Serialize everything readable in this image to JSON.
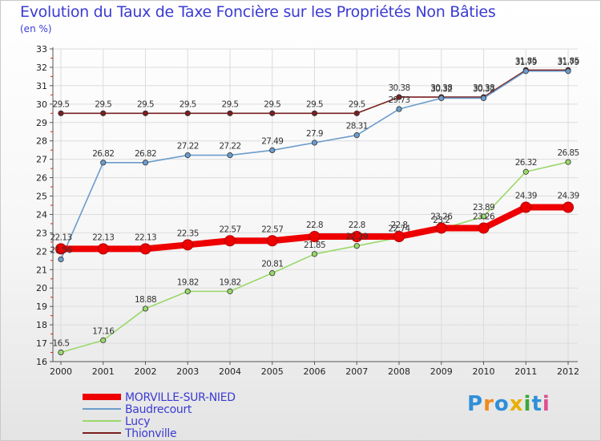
{
  "chart_data": {
    "type": "line",
    "title": "Evolution du Taux de Taxe Foncière sur les Propriétés Non Bâties",
    "ylabel": "(en %)",
    "xlabel": "",
    "x": [
      "2000",
      "2001",
      "2002",
      "2003",
      "2004",
      "2005",
      "2006",
      "2007",
      "2008",
      "2009",
      "2010",
      "2011",
      "2012"
    ],
    "ylim": [
      16,
      33
    ],
    "yticks": [
      16,
      17,
      18,
      19,
      20,
      21,
      22,
      23,
      24,
      25,
      26,
      27,
      28,
      29,
      30,
      31,
      32,
      33
    ],
    "series": [
      {
        "name": "Thionville",
        "color": "#7a2020",
        "values": [
          29.5,
          29.5,
          29.5,
          29.5,
          29.5,
          29.5,
          29.5,
          29.5,
          30.38,
          30.38,
          30.38,
          31.85,
          31.85
        ],
        "labels": [
          "29.5",
          "29.5",
          "29.5",
          "29.5",
          "29.5",
          "29.5",
          "29.5",
          "29.5",
          "30.38",
          "30.38",
          "30.38",
          "31.85",
          "31.85"
        ]
      },
      {
        "name": "Baudrecourt",
        "color": "#6b9ccc",
        "values": [
          21.56,
          26.82,
          26.82,
          27.22,
          27.22,
          27.49,
          27.9,
          28.31,
          29.73,
          30.32,
          30.32,
          31.79,
          31.79
        ],
        "labels": [
          "21.56",
          "26.82",
          "26.82",
          "27.22",
          "27.22",
          "27.49",
          "27.9",
          "28.31",
          "29.73",
          "30.32",
          "30.32",
          "31.79",
          "31.79"
        ]
      },
      {
        "name": "Lucy",
        "color": "#9ad86a",
        "values": [
          16.5,
          17.16,
          18.88,
          19.82,
          19.82,
          20.81,
          21.85,
          22.29,
          22.74,
          23.2,
          23.89,
          26.32,
          26.85
        ],
        "labels": [
          "16.5",
          "17.16",
          "18.88",
          "19.82",
          "19.82",
          "20.81",
          "21.85",
          "22.29",
          "22.74",
          "23.2",
          "23.89",
          "26.32",
          "26.85"
        ]
      },
      {
        "name": "MORVILLE-SUR-NIED",
        "color": "#ee0000",
        "values": [
          22.13,
          22.13,
          22.13,
          22.35,
          22.57,
          22.57,
          22.8,
          22.8,
          22.8,
          23.26,
          23.26,
          24.39,
          24.39
        ],
        "labels": [
          "22.13",
          "22.13",
          "22.13",
          "22.35",
          "22.57",
          "22.57",
          "22.8",
          "22.8",
          "22.8",
          "23.26",
          "23.26",
          "24.39",
          "24.39"
        ]
      }
    ],
    "legend": [
      {
        "name": "MORVILLE-SUR-NIED",
        "color": "#ee0000",
        "width": 8
      },
      {
        "name": "Baudrecourt",
        "color": "#6b9ccc",
        "width": 2
      },
      {
        "name": "Lucy",
        "color": "#9ad86a",
        "width": 2
      },
      {
        "name": "Thionville",
        "color": "#7a2020",
        "width": 2
      }
    ],
    "legend_position": "bottom-left",
    "grid": true
  },
  "brand": {
    "letters": [
      "P",
      "r",
      "o",
      "x",
      "i",
      "t",
      "i"
    ],
    "colors": [
      "#2f8fd8",
      "#f08a1c",
      "#2f8fd8",
      "#e8b000",
      "#3aa83a",
      "#2f8fd8",
      "#e05090"
    ]
  }
}
